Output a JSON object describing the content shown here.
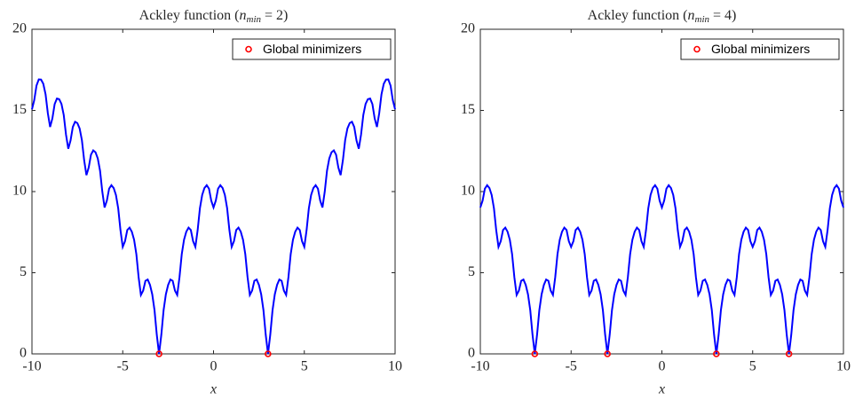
{
  "chart_data": [
    {
      "type": "line",
      "title": "Ackley function (n_min = 2)",
      "xlabel": "x",
      "xlim": [
        -10,
        10
      ],
      "xticks": [
        -10,
        -5,
        0,
        5,
        10
      ],
      "ylim": [
        0,
        20
      ],
      "yticks": [
        0,
        5,
        10,
        15,
        20
      ],
      "legend": "upper right",
      "x": [
        -10,
        -9.875,
        -9.75,
        -9.625,
        -9.5,
        -9.375,
        -9.25,
        -9.125,
        -9,
        -8.875,
        -8.75,
        -8.625,
        -8.5,
        -8.375,
        -8.25,
        -8.125,
        -8,
        -7.875,
        -7.75,
        -7.625,
        -7.5,
        -7.375,
        -7.25,
        -7.125,
        -7,
        -6.875,
        -6.75,
        -6.625,
        -6.5,
        -6.375,
        -6.25,
        -6.125,
        -6,
        -5.875,
        -5.75,
        -5.625,
        -5.5,
        -5.375,
        -5.25,
        -5.125,
        -5,
        -4.875,
        -4.75,
        -4.625,
        -4.5,
        -4.375,
        -4.25,
        -4.125,
        -4,
        -3.875,
        -3.75,
        -3.625,
        -3.5,
        -3.375,
        -3.25,
        -3.125,
        -3,
        -2.875,
        -2.75,
        -2.625,
        -2.5,
        -2.375,
        -2.25,
        -2.125,
        -2,
        -1.875,
        -1.75,
        -1.625,
        -1.5,
        -1.375,
        -1.25,
        -1.125,
        -1,
        -0.875,
        -0.75,
        -0.625,
        -0.5,
        -0.375,
        -0.25,
        -0.125,
        0,
        0.125,
        0.25,
        0.375,
        0.5,
        0.625,
        0.75,
        0.875,
        1,
        1.125,
        1.25,
        1.375,
        1.5,
        1.625,
        1.75,
        1.875,
        2,
        2.125,
        2.25,
        2.375,
        2.5,
        2.625,
        2.75,
        2.875,
        3,
        3.125,
        3.25,
        3.375,
        3.5,
        3.625,
        3.75,
        3.875,
        4,
        4.125,
        4.25,
        4.375,
        4.5,
        4.625,
        4.75,
        4.875,
        5,
        5.125,
        5.25,
        5.375,
        5.5,
        5.625,
        5.75,
        5.875,
        6,
        6.125,
        6.25,
        6.375,
        6.5,
        6.625,
        6.75,
        6.875,
        7,
        7.125,
        7.25,
        7.375,
        7.5,
        7.625,
        7.75,
        7.875,
        8,
        8.125,
        8.25,
        8.375,
        8.5,
        8.625,
        8.75,
        8.875,
        9,
        9.125,
        9.25,
        9.375,
        9.5,
        9.625,
        9.75,
        9.875,
        10
      ],
      "series": [
        {
          "color": "#0000ff",
          "values": [
            15.07,
            15.63,
            16.53,
            16.91,
            16.9,
            16.64,
            15.99,
            14.82,
            13.98,
            14.51,
            15.39,
            15.73,
            15.69,
            15.4,
            14.72,
            13.51,
            12.64,
            13.15,
            13.98,
            14.3,
            14.22,
            13.89,
            13.17,
            11.93,
            11.01,
            11.48,
            12.27,
            12.54,
            12.42,
            12.04,
            11.28,
            9.99,
            9.02,
            9.44,
            10.18,
            10.39,
            10.22,
            9.79,
            8.97,
            7.62,
            6.59,
            6.94,
            7.63,
            7.78,
            7.53,
            7.03,
            6.14,
            4.72,
            3.63,
            3.9,
            4.5,
            4.58,
            4.25,
            3.67,
            2.69,
            1.18,
            0,
            1.18,
            2.69,
            3.67,
            4.25,
            4.58,
            4.5,
            3.9,
            3.63,
            4.72,
            6.14,
            7.03,
            7.53,
            7.78,
            7.63,
            6.94,
            6.59,
            7.62,
            8.97,
            9.79,
            10.22,
            10.39,
            10.18,
            9.44,
            9.02,
            9.44,
            10.18,
            10.39,
            10.22,
            9.79,
            8.97,
            7.62,
            6.59,
            6.94,
            7.63,
            7.78,
            7.53,
            7.03,
            6.14,
            4.72,
            3.63,
            3.9,
            4.5,
            4.58,
            4.25,
            3.67,
            2.69,
            1.18,
            0,
            1.18,
            2.69,
            3.67,
            4.25,
            4.58,
            4.5,
            3.9,
            3.63,
            4.72,
            6.14,
            7.03,
            7.53,
            7.78,
            7.63,
            6.94,
            6.59,
            7.62,
            8.97,
            9.79,
            10.22,
            10.39,
            10.18,
            9.44,
            9.02,
            9.99,
            11.28,
            12.04,
            12.42,
            12.54,
            12.27,
            11.48,
            11.01,
            11.93,
            13.17,
            13.89,
            14.22,
            14.3,
            13.98,
            13.15,
            12.64,
            13.51,
            14.72,
            15.4,
            15.69,
            15.73,
            15.39,
            14.51,
            13.98,
            14.82,
            15.99,
            16.64,
            16.9,
            16.91,
            16.53,
            15.63,
            15.07
          ]
        },
        {
          "name": "Global minimizers",
          "type": "scatter",
          "color": "#ff0000",
          "x": [
            -3,
            3
          ],
          "values": [
            0,
            0
          ]
        }
      ]
    },
    {
      "type": "line",
      "title": "Ackley function (n_min = 4)",
      "xlabel": "x",
      "xlim": [
        -10,
        10
      ],
      "xticks": [
        -10,
        -5,
        0,
        5,
        10
      ],
      "ylim": [
        0,
        20
      ],
      "yticks": [
        0,
        5,
        10,
        15,
        20
      ],
      "legend": "upper right",
      "x": [
        -10,
        -9.875,
        -9.75,
        -9.625,
        -9.5,
        -9.375,
        -9.25,
        -9.125,
        -9,
        -8.875,
        -8.75,
        -8.625,
        -8.5,
        -8.375,
        -8.25,
        -8.125,
        -8,
        -7.875,
        -7.75,
        -7.625,
        -7.5,
        -7.375,
        -7.25,
        -7.125,
        -7,
        -6.875,
        -6.75,
        -6.625,
        -6.5,
        -6.375,
        -6.25,
        -6.125,
        -6,
        -5.875,
        -5.75,
        -5.625,
        -5.5,
        -5.375,
        -5.25,
        -5.125,
        -5,
        -4.875,
        -4.75,
        -4.625,
        -4.5,
        -4.375,
        -4.25,
        -4.125,
        -4,
        -3.875,
        -3.75,
        -3.625,
        -3.5,
        -3.375,
        -3.25,
        -3.125,
        -3,
        -2.875,
        -2.75,
        -2.625,
        -2.5,
        -2.375,
        -2.25,
        -2.125,
        -2,
        -1.875,
        -1.75,
        -1.625,
        -1.5,
        -1.375,
        -1.25,
        -1.125,
        -1,
        -0.875,
        -0.75,
        -0.625,
        -0.5,
        -0.375,
        -0.25,
        -0.125,
        0,
        0.125,
        0.25,
        0.375,
        0.5,
        0.625,
        0.75,
        0.875,
        1,
        1.125,
        1.25,
        1.375,
        1.5,
        1.625,
        1.75,
        1.875,
        2,
        2.125,
        2.25,
        2.375,
        2.5,
        2.625,
        2.75,
        2.875,
        3,
        3.125,
        3.25,
        3.375,
        3.5,
        3.625,
        3.75,
        3.875,
        4,
        4.125,
        4.25,
        4.375,
        4.5,
        4.625,
        4.75,
        4.875,
        5,
        5.125,
        5.25,
        5.375,
        5.5,
        5.625,
        5.75,
        5.875,
        6,
        6.125,
        6.25,
        6.375,
        6.5,
        6.625,
        6.75,
        6.875,
        7,
        7.125,
        7.25,
        7.375,
        7.5,
        7.625,
        7.75,
        7.875,
        8,
        8.125,
        8.25,
        8.375,
        8.5,
        8.625,
        8.75,
        8.875,
        9,
        9.125,
        9.25,
        9.375,
        9.5,
        9.625,
        9.75,
        9.875,
        10
      ],
      "series": [
        {
          "color": "#0000ff",
          "values": [
            9.02,
            9.44,
            10.18,
            10.39,
            10.22,
            9.79,
            8.97,
            7.62,
            6.59,
            6.94,
            7.63,
            7.78,
            7.53,
            7.03,
            6.14,
            4.72,
            3.63,
            3.9,
            4.5,
            4.58,
            4.25,
            3.67,
            2.69,
            1.18,
            0,
            1.18,
            2.69,
            3.67,
            4.25,
            4.58,
            4.5,
            3.9,
            3.63,
            4.72,
            6.14,
            7.03,
            7.53,
            7.78,
            7.63,
            6.94,
            6.59,
            6.94,
            7.63,
            7.78,
            7.53,
            7.03,
            6.14,
            4.72,
            3.63,
            3.9,
            4.5,
            4.58,
            4.25,
            3.67,
            2.69,
            1.18,
            0,
            1.18,
            2.69,
            3.67,
            4.25,
            4.58,
            4.5,
            3.9,
            3.63,
            4.72,
            6.14,
            7.03,
            7.53,
            7.78,
            7.63,
            6.94,
            6.59,
            7.62,
            8.97,
            9.79,
            10.22,
            10.39,
            10.18,
            9.44,
            9.02,
            9.44,
            10.18,
            10.39,
            10.22,
            9.79,
            8.97,
            7.62,
            6.59,
            6.94,
            7.63,
            7.78,
            7.53,
            7.03,
            6.14,
            4.72,
            3.63,
            3.9,
            4.5,
            4.58,
            4.25,
            3.67,
            2.69,
            1.18,
            0,
            1.18,
            2.69,
            3.67,
            4.25,
            4.58,
            4.5,
            3.9,
            3.63,
            4.72,
            6.14,
            7.03,
            7.53,
            7.78,
            7.63,
            6.94,
            6.59,
            6.94,
            7.63,
            7.78,
            7.53,
            7.03,
            6.14,
            4.72,
            3.63,
            3.9,
            4.5,
            4.58,
            4.25,
            3.67,
            2.69,
            1.18,
            0,
            1.18,
            2.69,
            3.67,
            4.25,
            4.58,
            4.5,
            3.9,
            3.63,
            4.72,
            6.14,
            7.03,
            7.53,
            7.78,
            7.63,
            6.94,
            6.59,
            7.62,
            8.97,
            9.79,
            10.22,
            10.39,
            10.18,
            9.44,
            9.02
          ]
        },
        {
          "name": "Global minimizers",
          "type": "scatter",
          "color": "#ff0000",
          "x": [
            -7,
            -3,
            3,
            7
          ],
          "values": [
            0,
            0,
            0,
            0
          ]
        }
      ]
    }
  ]
}
